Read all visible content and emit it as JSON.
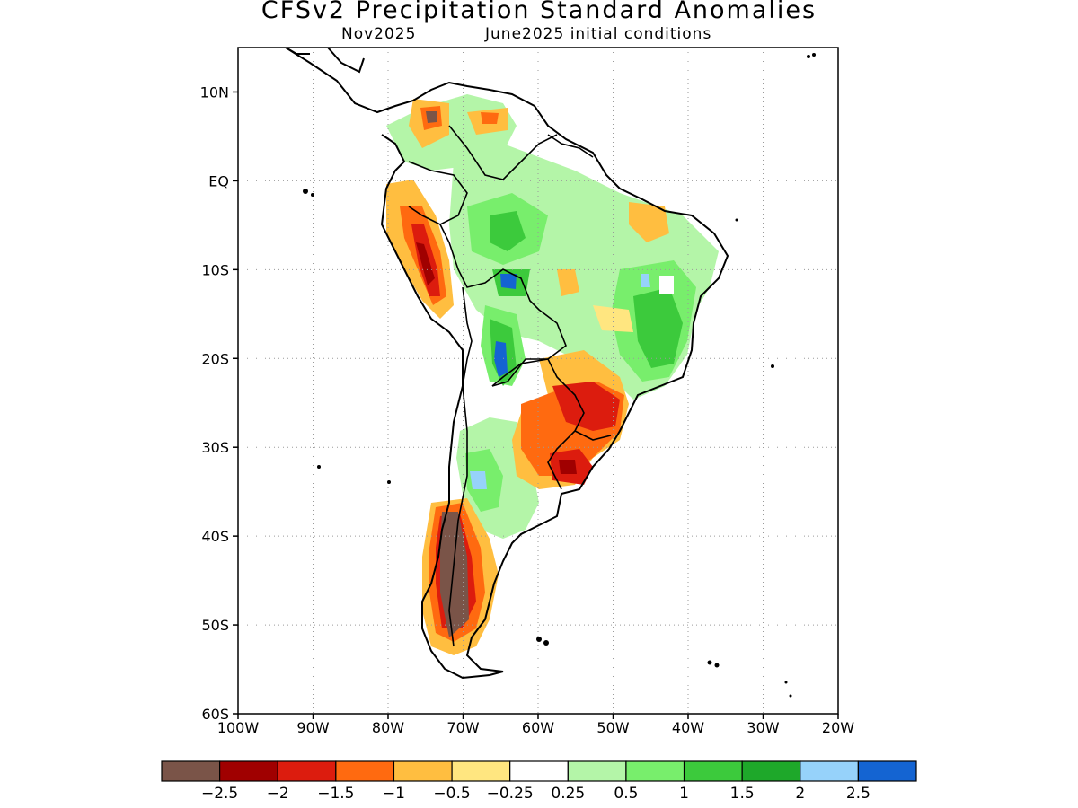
{
  "title": "CFSv2 Precipitation Standard Anomalies",
  "subtitle_left": "Nov2025",
  "subtitle_right": "June2025 initial conditions",
  "map": {
    "lon_range": [
      -100,
      -20
    ],
    "lat_range": [
      -60,
      15
    ],
    "lon_ticks": [
      "100W",
      "90W",
      "80W",
      "70W",
      "60W",
      "50W",
      "40W",
      "30W",
      "20W"
    ],
    "lat_ticks": [
      "10N",
      "EQ",
      "10S",
      "20S",
      "30S",
      "40S",
      "50S",
      "60S"
    ],
    "grid": "dotted"
  },
  "legend": {
    "colors": [
      "#7a5448",
      "#a00000",
      "#dc1c0e",
      "#ff6a10",
      "#ffbe40",
      "#ffe680",
      "#ffffff",
      "#b4f5a8",
      "#78ee6c",
      "#3cca3c",
      "#1ea82a",
      "#96d2fa",
      "#1464d2"
    ],
    "labels": [
      "−2.5",
      "−2",
      "−1.5",
      "−1",
      "−0.5",
      "−0.25",
      "0.25",
      "0.5",
      "1",
      "1.5",
      "2",
      "2.5"
    ]
  }
}
